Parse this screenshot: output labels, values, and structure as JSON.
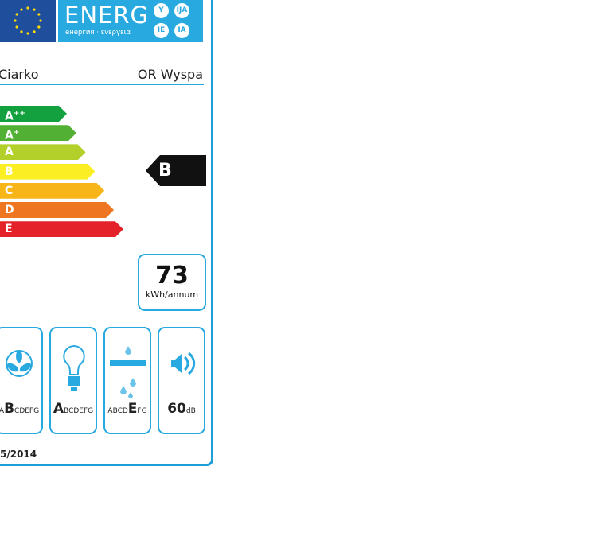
{
  "header": {
    "energy_word": "ENERG",
    "energy_subtitle": "енергия · ενεργεια",
    "suffixes": [
      "Y",
      "IJA",
      "IE",
      "IA"
    ]
  },
  "product": {
    "supplier": "Ciarko",
    "model": "OR Wyspa"
  },
  "scale": [
    {
      "label": "A",
      "sup": "++",
      "color": "#13a03e"
    },
    {
      "label": "A",
      "sup": "+",
      "color": "#52b135"
    },
    {
      "label": "A",
      "sup": "",
      "color": "#b3cf2a"
    },
    {
      "label": "B",
      "sup": "",
      "color": "#fbee23"
    },
    {
      "label": "C",
      "sup": "",
      "color": "#f8b517"
    },
    {
      "label": "D",
      "sup": "",
      "color": "#ee7622"
    },
    {
      "label": "E",
      "sup": "",
      "color": "#e3222a"
    }
  ],
  "rating": {
    "class": "B"
  },
  "consumption": {
    "value": "73",
    "unit": "kWh/annum"
  },
  "pictograms": [
    {
      "icon": "fan-icon",
      "pre": "A",
      "bold": "B",
      "post": "CDEFG"
    },
    {
      "icon": "lightbulb-icon",
      "pre": "",
      "bold": "A",
      "post": "BCDEFG"
    },
    {
      "icon": "grease-filter-icon",
      "pre": "ABCD",
      "bold": "E",
      "post": "FG"
    },
    {
      "icon": "speaker-icon",
      "pre": "",
      "bold": "60",
      "post": "dB"
    }
  ],
  "regulation": "5/2014",
  "colors": {
    "accent": "#28a9e0",
    "eu_blue": "#1f4e9c"
  }
}
